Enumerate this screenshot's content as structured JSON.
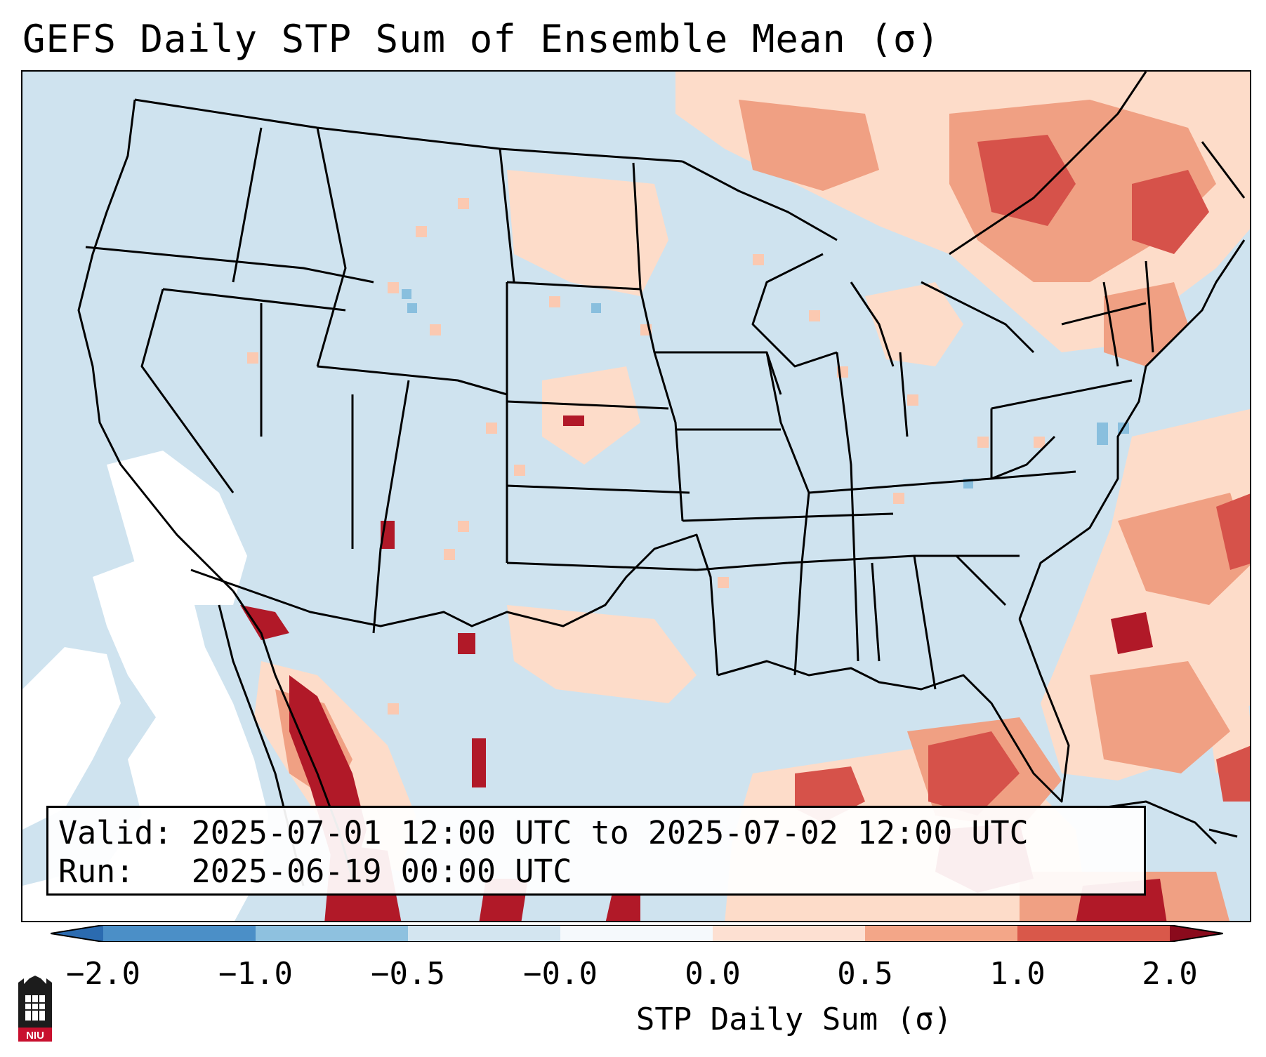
{
  "title": "GEFS Daily STP Sum of Ensemble Mean (σ)",
  "info": {
    "valid_line": "Valid: 2025-07-01 12:00 UTC to 2025-07-02 12:00 UTC",
    "run_line": "Run:   2025-06-19 00:00 UTC"
  },
  "colorbar": {
    "label": "STP Daily Sum (σ)",
    "ticks": [
      "−2.0",
      "−1.0",
      "−0.5",
      "−0.0",
      "0.0",
      "0.5",
      "1.0",
      "2.0"
    ],
    "colors": [
      "#4b8fc7",
      "#8ec1df",
      "#d3e5f0",
      "#f5f9fc",
      "#fde0d2",
      "#f3a688",
      "#d9584a",
      "#b11928"
    ],
    "under_color": "#2b6bb0",
    "over_color": "#8a0a1c"
  },
  "map": {
    "ocean_color": "#cfe3ef",
    "background_color": "#cfe3ef",
    "border_color": "#000000",
    "description_icon": "conus-map-icon"
  },
  "logo": {
    "text": "NIU"
  }
}
